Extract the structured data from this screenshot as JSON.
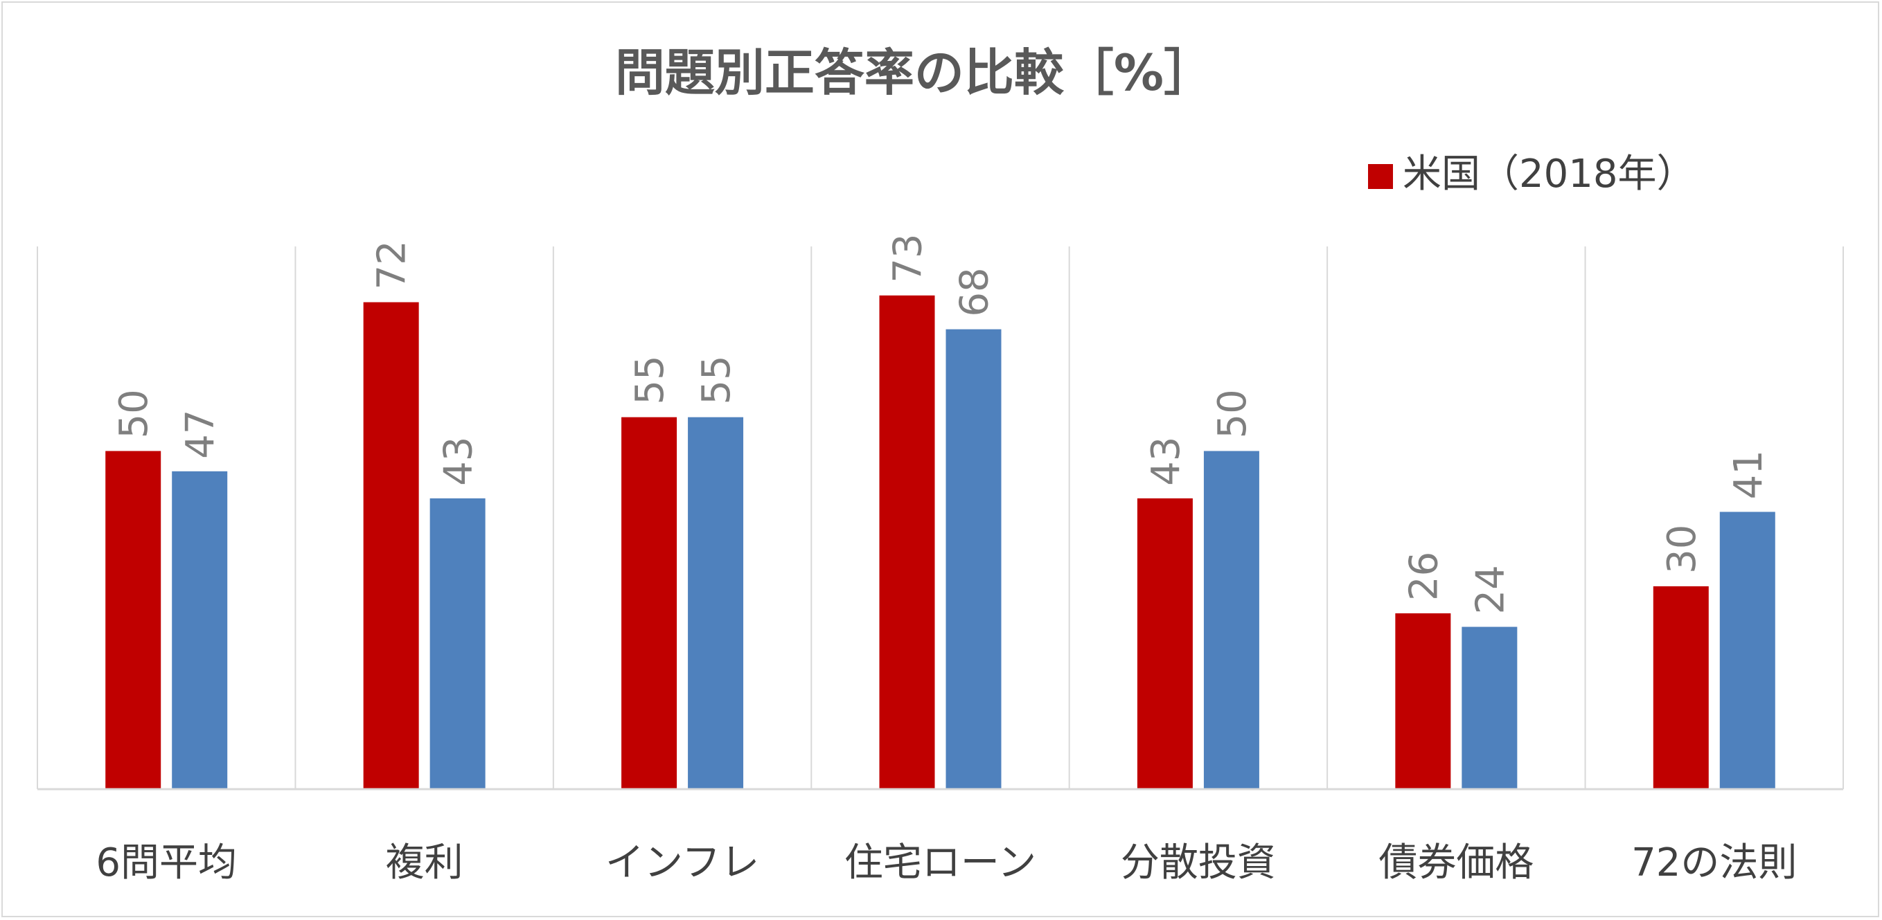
{
  "chart_data": {
    "type": "bar",
    "title": "問題別正答率の比較［%］",
    "categories": [
      "6問平均",
      "複利",
      "インフレ",
      "住宅ローン",
      "分散投資",
      "債券価格",
      "72の法則"
    ],
    "series": [
      {
        "name": "米国（2018年）",
        "color": "#c00000",
        "values": [
          50,
          72,
          55,
          73,
          43,
          26,
          30
        ]
      },
      {
        "name": "",
        "color": "#4f81bd",
        "values": [
          47,
          43,
          55,
          68,
          50,
          24,
          41
        ]
      }
    ],
    "ylim": [
      0,
      80
    ],
    "xlabel": "",
    "ylabel": "",
    "legend_position": "top-right",
    "grid": "vertical category separators",
    "data_labels": true
  }
}
